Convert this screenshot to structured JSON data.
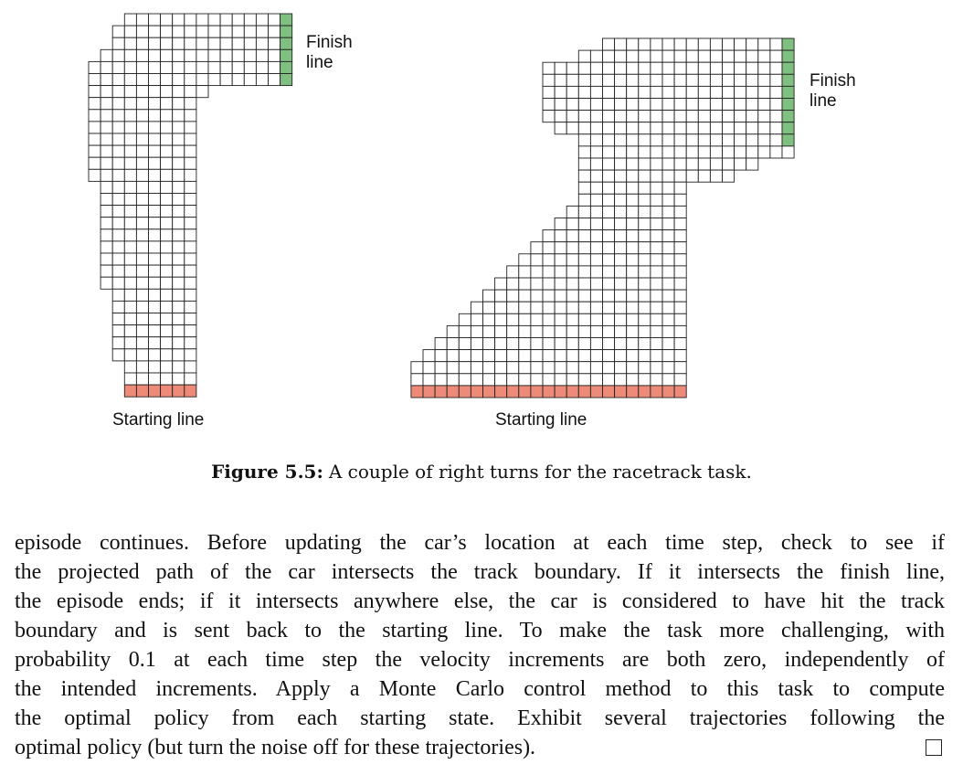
{
  "figure": {
    "track1": {
      "finish_label": [
        "Finish",
        "line"
      ],
      "start_label": "Starting line"
    },
    "track2": {
      "finish_label": [
        "Finish",
        "line"
      ],
      "start_label": "Starting line"
    },
    "caption_label": "Figure 5.5:",
    "caption_text": "A couple of right turns for the racetrack task.",
    "colors": {
      "grid_line": "#222222",
      "finish_cells": "#7fbf7f",
      "start_cells": "#ee8a78"
    }
  },
  "body": {
    "lines": [
      "episode continues. Before updating the car’s location at each time step, check to see if",
      "the projected path of the car intersects the track boundary. If it intersects the finish line,",
      "the episode ends; if it intersects anywhere else, the car is considered to have hit the track",
      "boundary and is sent back to the starting line. To make the task more challenging, with",
      "probability 0.1 at each time step the velocity increments are both zero, independently of",
      "the intended increments. Apply a Monte Carlo control method to this task to compute",
      "the optimal policy from each starting state. Exhibit several trajectories following the",
      "optimal policy (but turn the noise off for these trajectories)."
    ],
    "end_mark": "qed-square"
  }
}
